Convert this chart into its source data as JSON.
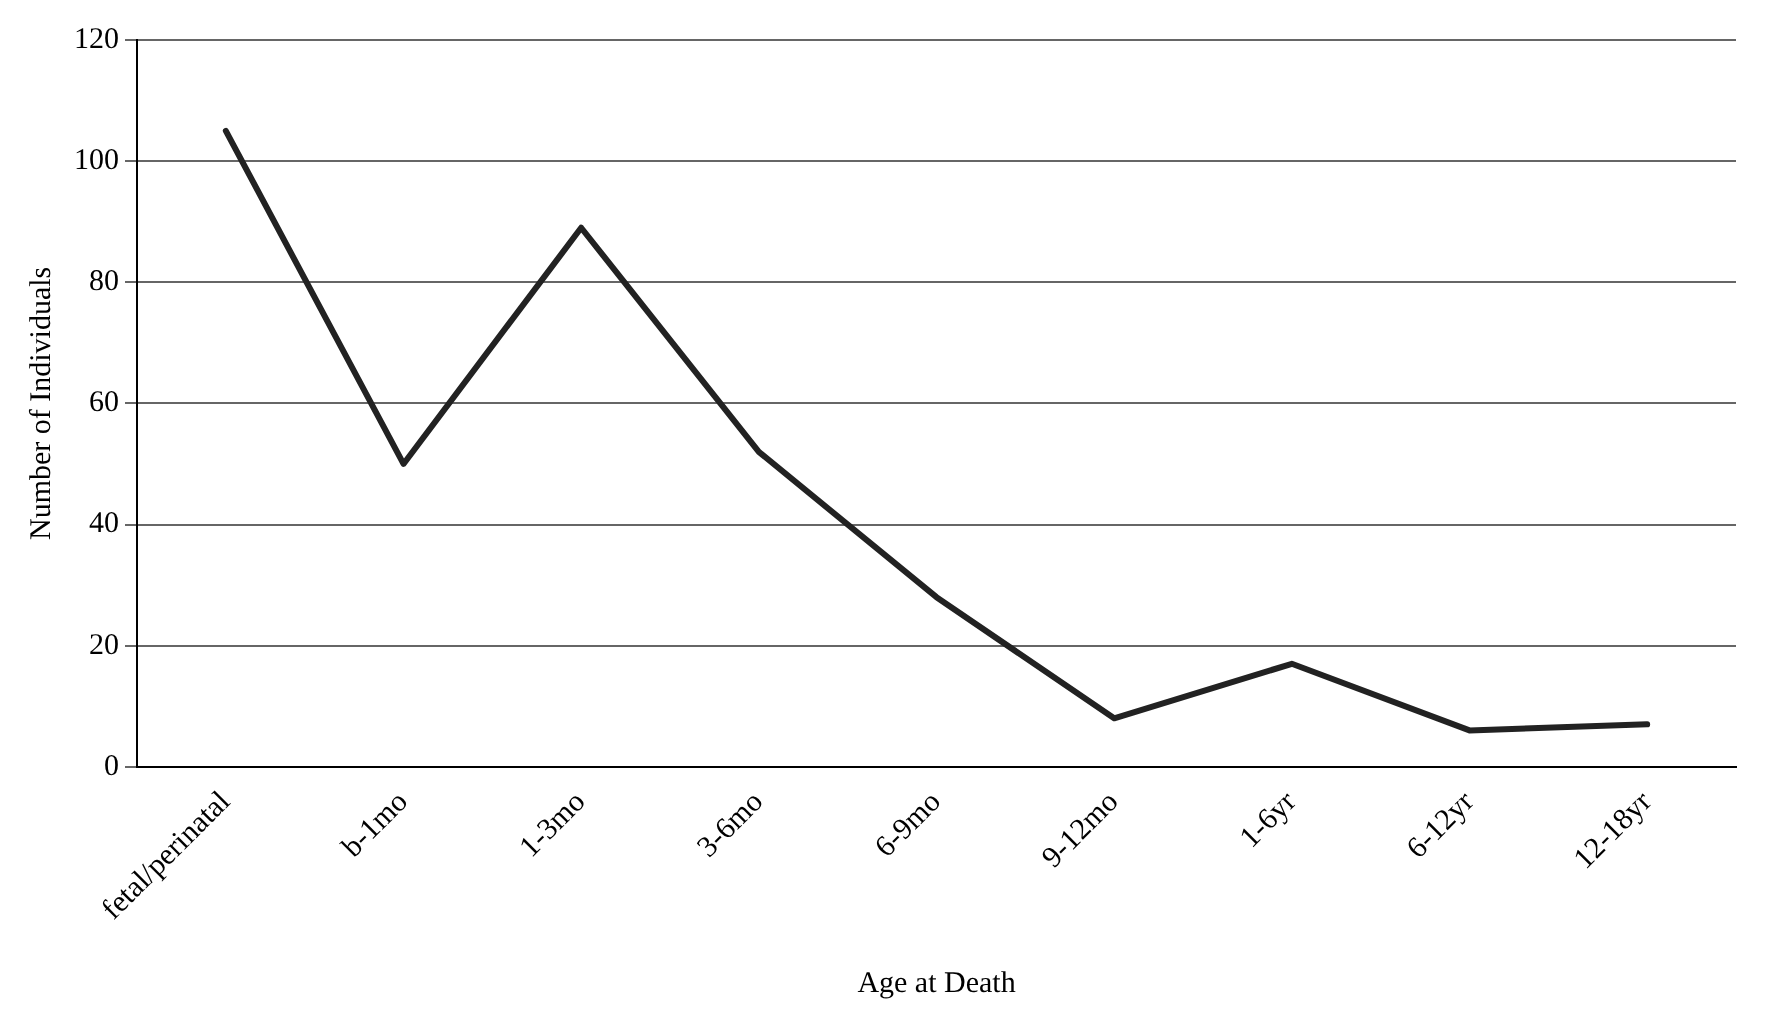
{
  "chart_data": {
    "type": "line",
    "xlabel": "Age at Death",
    "ylabel": "Number of Individuals",
    "categories": [
      "fetal/perinatal",
      "b-1mo",
      "1-3mo",
      "3-6mo",
      "6-9mo",
      "9-12mo",
      "1-6yr",
      "6-12yr",
      "12-18yr"
    ],
    "series": [
      {
        "color": "#222222",
        "values": [
          105,
          50,
          89,
          52,
          28,
          8,
          17,
          6,
          7
        ]
      }
    ],
    "ylim": [
      0,
      120
    ],
    "yticks": [
      0,
      20,
      40,
      60,
      80,
      100,
      120
    ],
    "grid": "y",
    "legend": false,
    "marker": "none",
    "line_style": "solid"
  }
}
